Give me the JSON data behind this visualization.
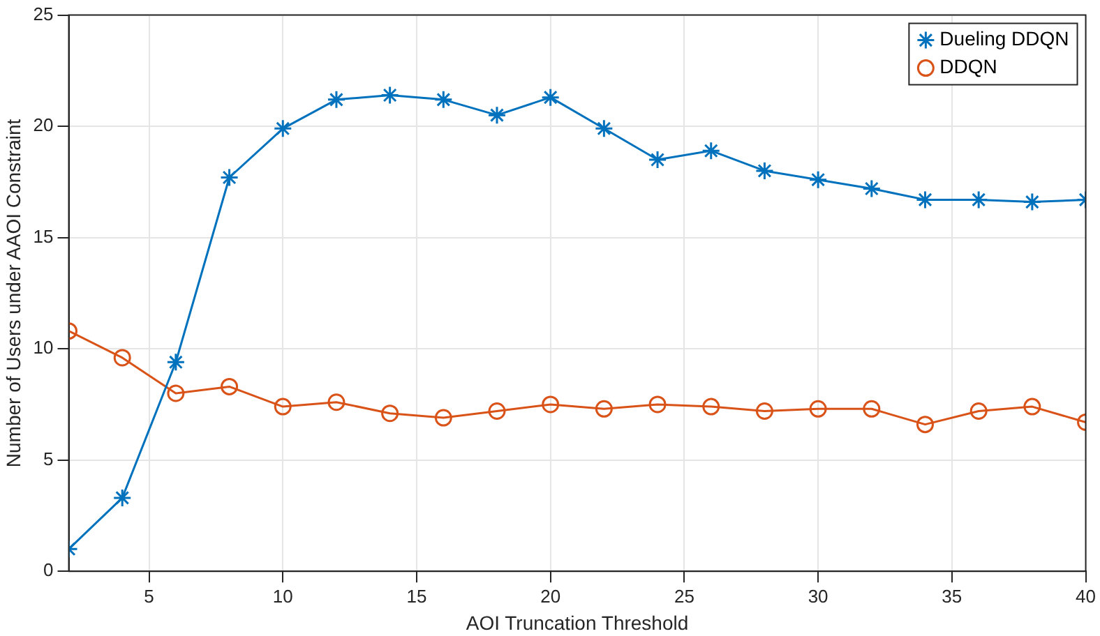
{
  "chart_data": {
    "type": "line",
    "xlabel": "AOI Truncation Threshold",
    "ylabel": "Number of Users under AAOI Constraint",
    "x": [
      2,
      4,
      6,
      8,
      10,
      12,
      14,
      16,
      18,
      20,
      22,
      24,
      26,
      28,
      30,
      32,
      34,
      36,
      38,
      40
    ],
    "series": [
      {
        "name": "Dueling DDQN",
        "color": "#0072bd",
        "marker": "cross",
        "values": [
          1.0,
          3.3,
          9.4,
          17.7,
          19.9,
          21.2,
          21.4,
          21.2,
          20.5,
          21.3,
          19.9,
          18.5,
          18.9,
          18.0,
          17.6,
          17.2,
          16.7,
          16.7,
          16.6,
          16.7
        ]
      },
      {
        "name": "DDQN",
        "color": "#d95319",
        "marker": "circle",
        "values": [
          10.8,
          9.6,
          8.0,
          8.3,
          7.4,
          7.6,
          7.1,
          6.9,
          7.2,
          7.5,
          7.3,
          7.5,
          7.4,
          7.2,
          7.3,
          7.3,
          6.6,
          7.2,
          7.4,
          6.7
        ]
      }
    ],
    "xlim": [
      2,
      40
    ],
    "xticks": [
      5,
      10,
      15,
      20,
      25,
      30,
      35,
      40
    ],
    "ylim": [
      0,
      25
    ],
    "yticks": [
      0,
      5,
      10,
      15,
      20,
      25
    ],
    "grid": true,
    "legend": "top right"
  }
}
